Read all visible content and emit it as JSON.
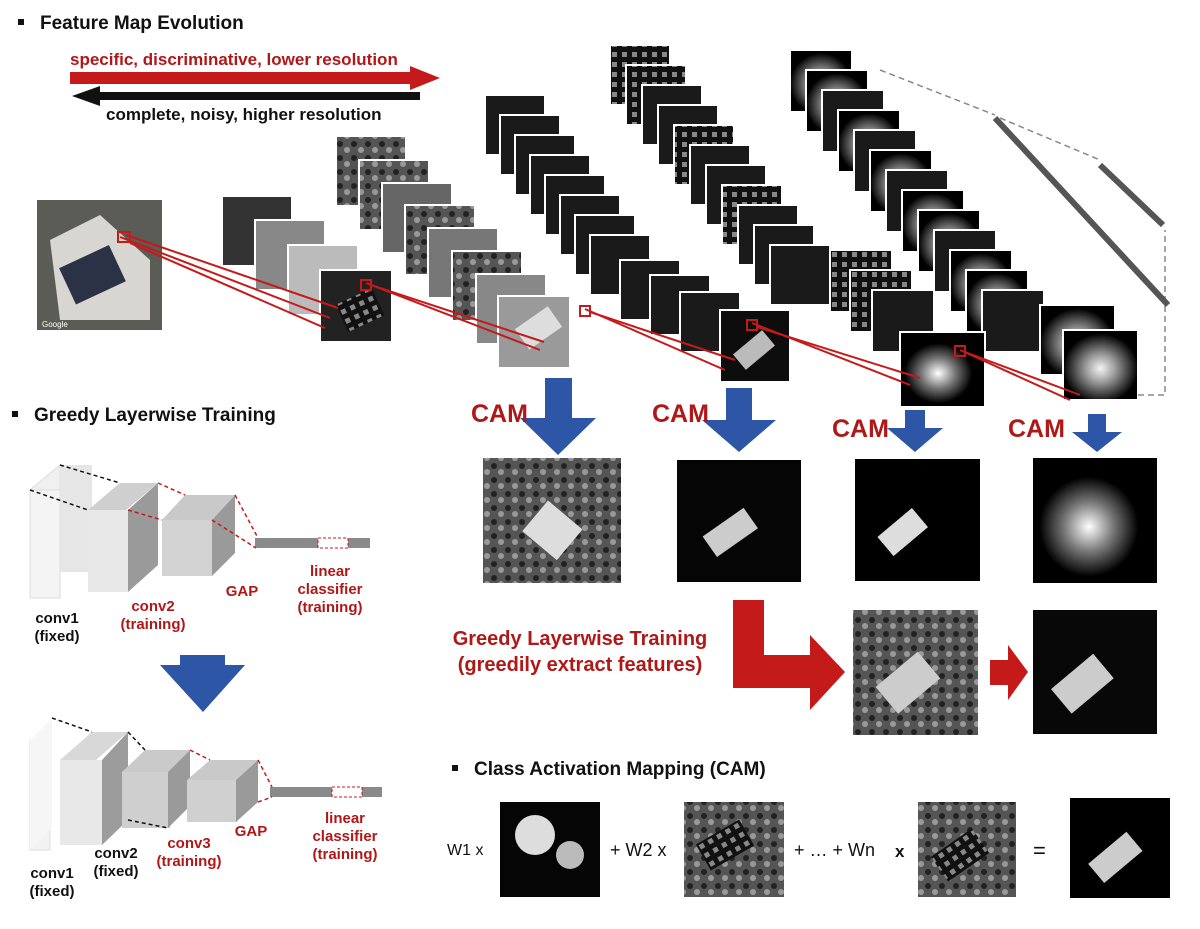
{
  "sections": {
    "feature_map": "Feature Map Evolution",
    "greedy": "Greedy Layerwise Training",
    "cam": "Class Activation Mapping (CAM)"
  },
  "arrows": {
    "forward": "specific, discriminative, lower resolution",
    "backward": "complete, noisy, higher resolution"
  },
  "cam_label": "CAM",
  "satellite_caption": "Google",
  "greedy_box": {
    "line1": "Greedy Layerwise Training",
    "line2": "(greedily extract features)"
  },
  "net_top": {
    "conv1": [
      "conv1",
      "(fixed)"
    ],
    "conv2": [
      "conv2",
      "(training)"
    ],
    "gap": "GAP",
    "classifier": [
      "linear",
      "classifier",
      "(training)"
    ]
  },
  "net_bottom": {
    "conv1": [
      "conv1",
      "(fixed)"
    ],
    "conv2": [
      "conv2",
      "(fixed)"
    ],
    "conv3": [
      "conv3",
      "(training)"
    ],
    "gap": "GAP",
    "classifier": [
      "linear",
      "classifier",
      "(training)"
    ]
  },
  "equation": {
    "w1": "W1 x",
    "w2": "+ W2 x",
    "dots": "+ … + Wn",
    "x": "x",
    "eq": "="
  }
}
